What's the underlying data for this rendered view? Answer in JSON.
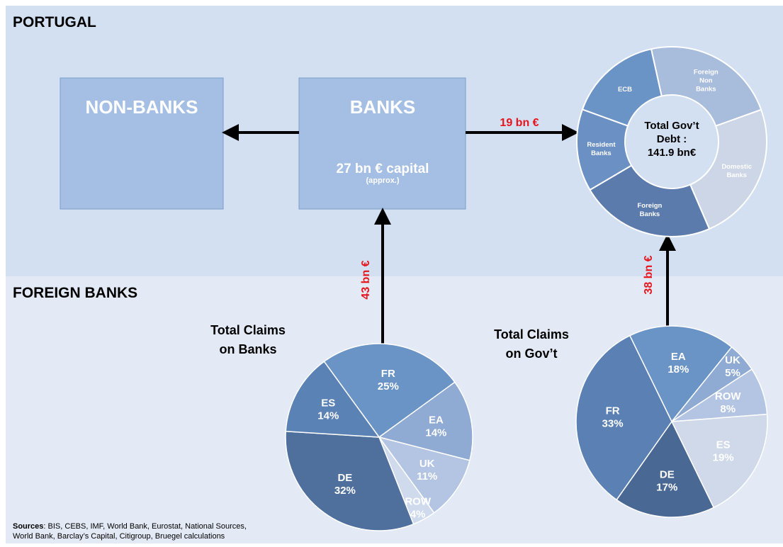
{
  "sections": {
    "top": "PORTUGAL",
    "bottom": "FOREIGN BANKS"
  },
  "nodes": [
    {
      "label": "NON-BANKS"
    },
    {
      "label": "BANKS",
      "detail": "27 bn € capital",
      "note": "(approx.)"
    }
  ],
  "flows": [
    "19 bn €",
    "43 bn €",
    "38 bn €"
  ],
  "charts": [
    {
      "type": "donut",
      "center": [
        "Total Gov’t",
        "Debt :",
        "141.9 bn€"
      ],
      "labels": [
        [
          "Foreign",
          "Non",
          "Banks"
        ],
        [
          "Domestic",
          "Banks"
        ],
        [
          "Foreign",
          "Banks"
        ],
        [
          "Resident",
          "Banks"
        ],
        [
          "ECB"
        ]
      ],
      "values": [
        23,
        24,
        23,
        14,
        16
      ],
      "colors": [
        "#a8bcdc",
        "#cdd6e6",
        "#5a7bac",
        "#6b90c3",
        "#6a93c6"
      ]
    },
    {
      "type": "pie",
      "title": [
        "Total Claims",
        "on Banks"
      ],
      "categories": [
        "FR",
        "EA",
        "UK",
        "ROW",
        "DE",
        "ES"
      ],
      "values": [
        25,
        14,
        11,
        4,
        32,
        14
      ],
      "value_labels": [
        "25%",
        "14%",
        "11%",
        "4%",
        "32%",
        "14%"
      ],
      "colors": [
        "#6a93c6",
        "#8faad3",
        "#b3c5e2",
        "#cfdaed",
        "#4f709d",
        "#5b82b5"
      ]
    },
    {
      "type": "pie",
      "title": [
        "Total Claims",
        "on Gov’t"
      ],
      "categories": [
        "EA",
        "UK",
        "ROW",
        "ES",
        "DE",
        "FR"
      ],
      "values": [
        18,
        5,
        8,
        19,
        17,
        33
      ],
      "value_labels": [
        "18%",
        "5%",
        "8%",
        "19%",
        "17%",
        "33%"
      ],
      "colors": [
        "#6a93c6",
        "#8faad3",
        "#b3c5e2",
        "#cfd9ea",
        "#4a6894",
        "#5a80b4"
      ]
    }
  ],
  "sources": {
    "label": "Sources",
    "lines": [
      ": BIS, CEBS, IMF, World Bank, Eurostat, National Sources,",
      "World Bank, Barclay’s Capital, Citigroup, Bruegel calculations"
    ]
  }
}
